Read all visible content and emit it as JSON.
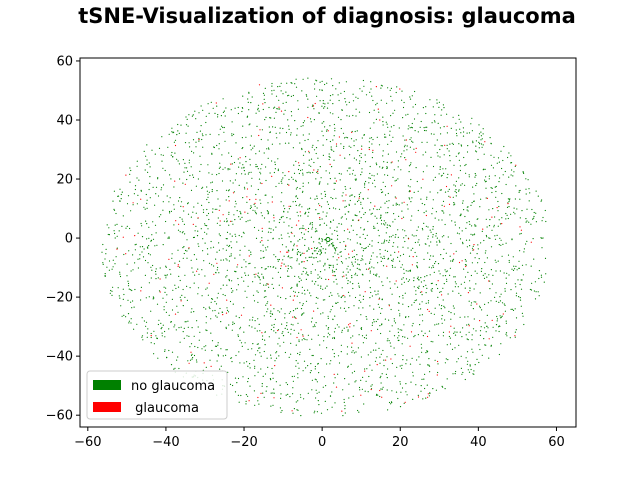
{
  "chart_data": {
    "type": "scatter",
    "title": "tSNE-Visualization of diagnosis: glaucoma",
    "xlabel": "",
    "ylabel": "",
    "xlim": [
      -62,
      65
    ],
    "ylim": [
      -64,
      61
    ],
    "xticks": [
      -60,
      -40,
      -20,
      0,
      20,
      40,
      60
    ],
    "yticks": [
      -60,
      -40,
      -20,
      0,
      20,
      40,
      60
    ],
    "xtick_labels": [
      "−60",
      "−40",
      "−20",
      "0",
      "20",
      "40",
      "60"
    ],
    "ytick_labels": [
      "−60",
      "−40",
      "−20",
      "0",
      "20",
      "40",
      "60"
    ],
    "grid": false,
    "legend_position": "lower-left",
    "series": [
      {
        "name": "no glaucoma",
        "color": "#008000",
        "approx_point_count": 3400
      },
      {
        "name": " glaucoma",
        "color": "#ff0000",
        "approx_point_count": 230
      }
    ],
    "point_cloud": {
      "shape": "ellipse",
      "center": [
        1,
        -3
      ],
      "x_range": [
        -56,
        59
      ],
      "y_range": [
        -60,
        55
      ],
      "highlighted_point": [
        1.5,
        -0.5
      ]
    }
  }
}
